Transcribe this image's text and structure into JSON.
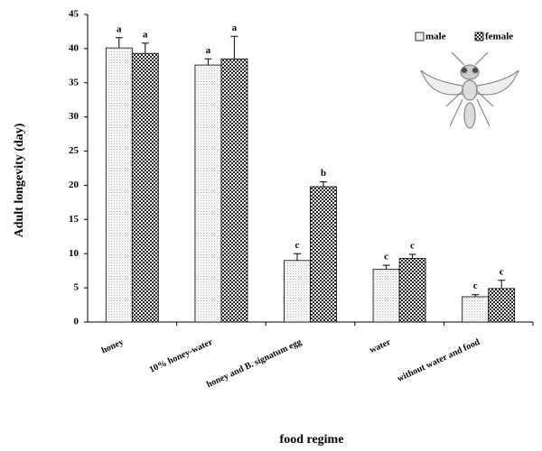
{
  "chart_data": {
    "type": "bar",
    "x_label": "food regime",
    "y_label": "Adult longevity (day)",
    "categories": [
      "honey",
      "10% honey-water",
      "honey and B. signatum egg",
      "water",
      "without water and food"
    ],
    "series": [
      {
        "name": "male",
        "pattern": "dots",
        "color": "#b0b0b0",
        "values": [
          40.1,
          37.6,
          9.0,
          7.7,
          3.7
        ],
        "errors": [
          1.5,
          0.9,
          1.0,
          0.6,
          0.3
        ],
        "letters": [
          "a",
          "a",
          "c",
          "c",
          "c"
        ]
      },
      {
        "name": "female",
        "pattern": "checker",
        "color": "#222222",
        "values": [
          39.3,
          38.5,
          19.8,
          9.3,
          4.9
        ],
        "errors": [
          1.5,
          3.3,
          0.7,
          0.6,
          1.2
        ],
        "letters": [
          "a",
          "a",
          "b",
          "c",
          "c"
        ]
      }
    ],
    "ylim": [
      0,
      45
    ],
    "yticks": [
      0,
      5,
      10,
      15,
      20,
      25,
      30,
      35,
      40,
      45
    ],
    "grid": false,
    "legend": "top-right"
  }
}
